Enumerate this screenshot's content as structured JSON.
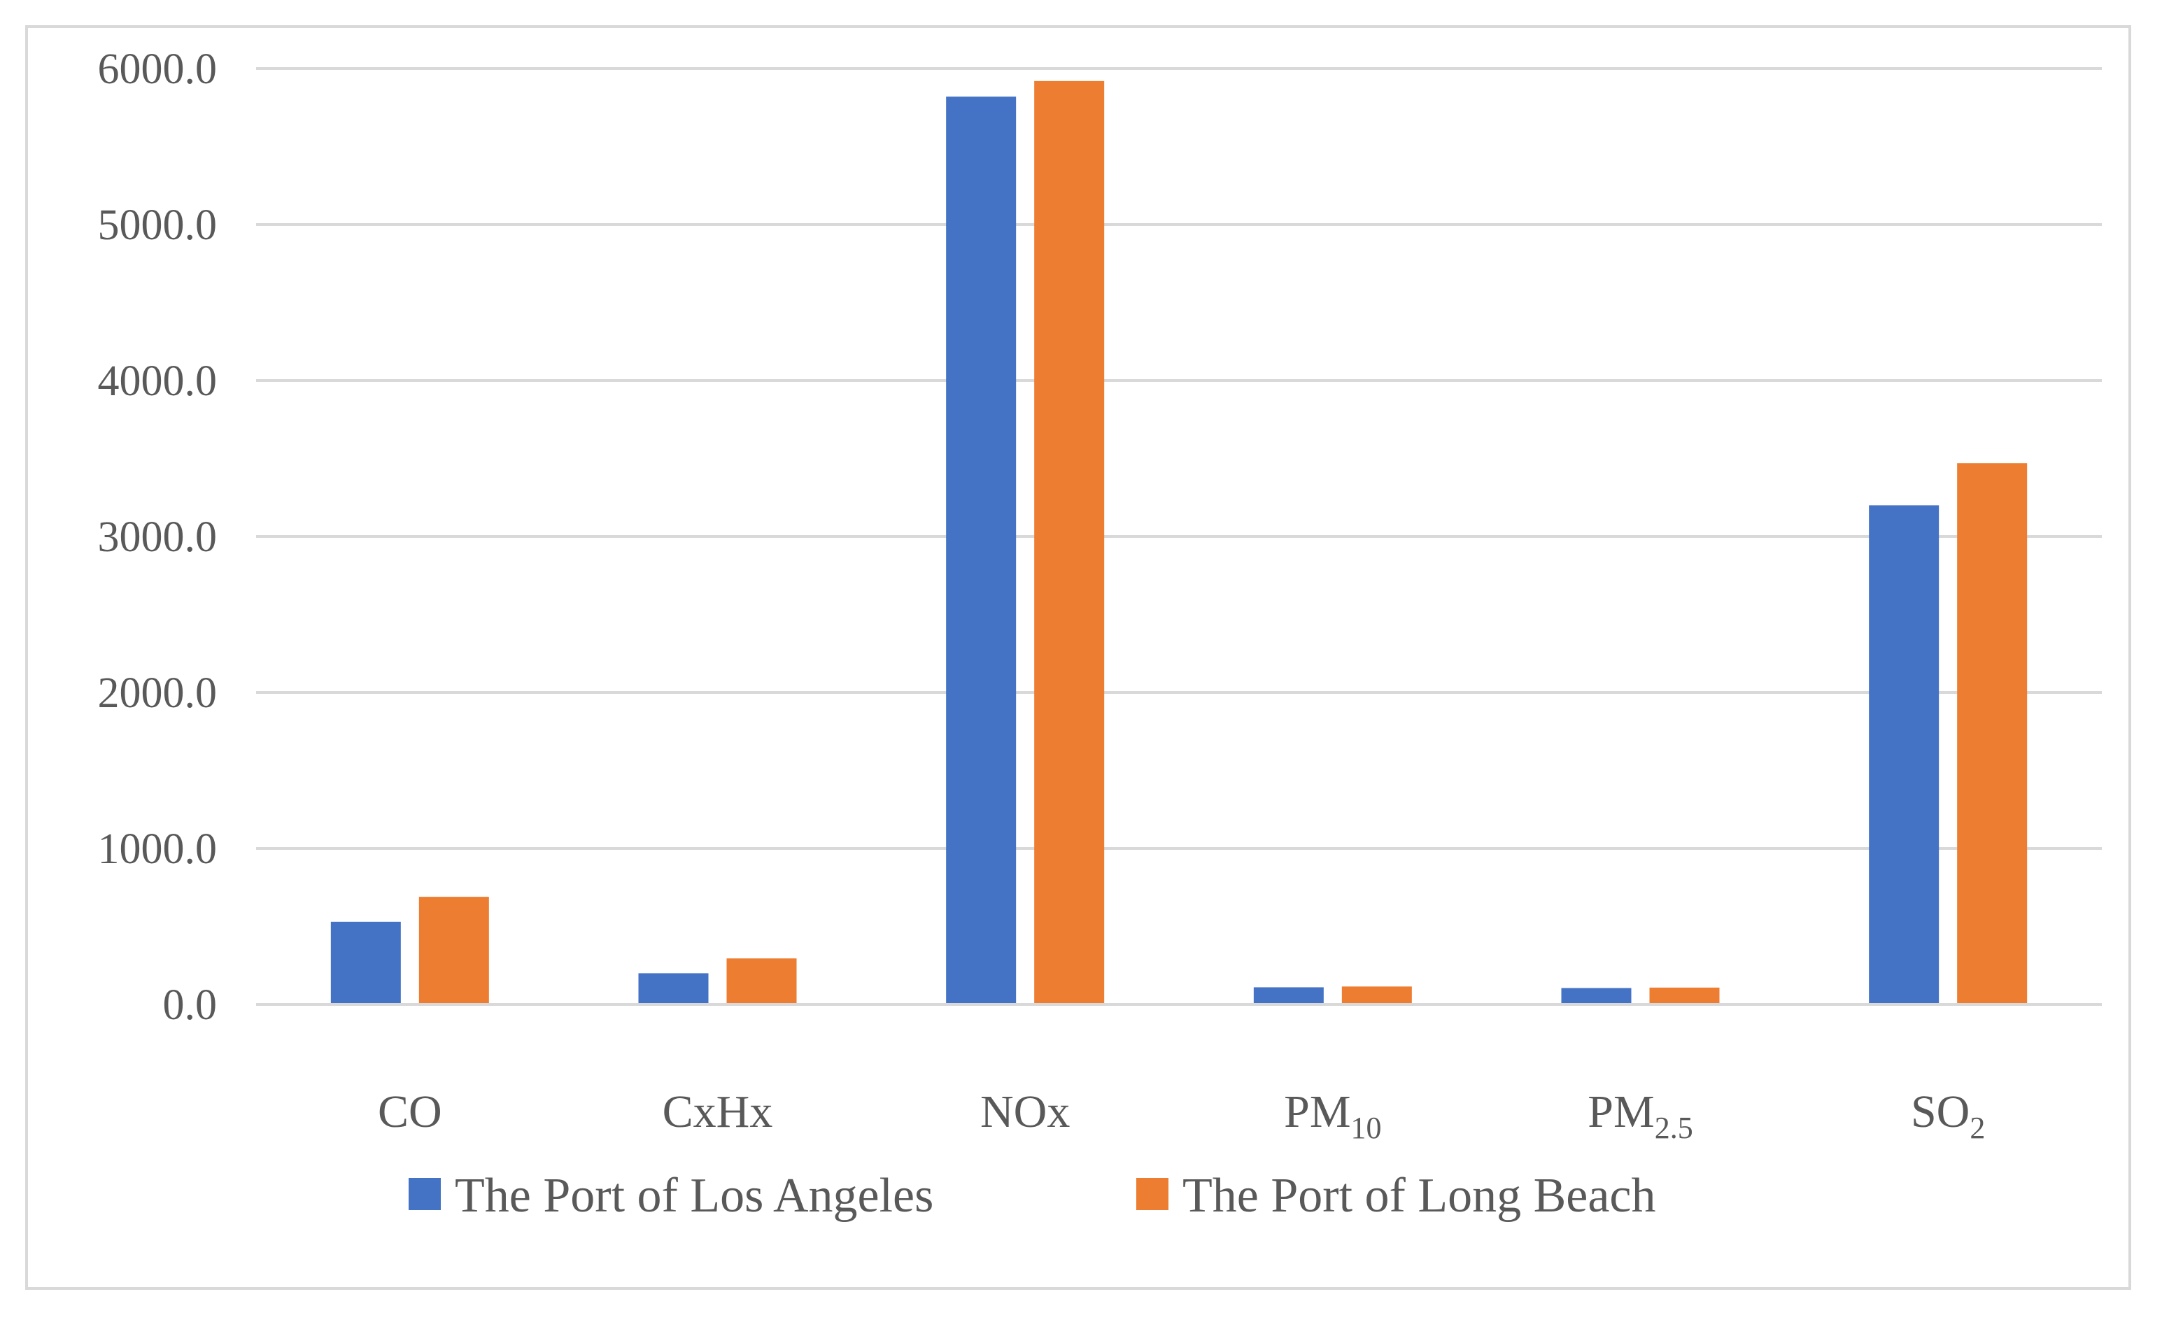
{
  "chart_data": {
    "type": "bar",
    "title": "",
    "xlabel": "",
    "ylabel": "",
    "ylim": [
      0,
      6000
    ],
    "yticks": [
      0,
      1000,
      2000,
      3000,
      4000,
      5000,
      6000
    ],
    "ytick_labels": [
      "0.0",
      "1000.0",
      "2000.0",
      "3000.0",
      "4000.0",
      "5000.0",
      "6000.0"
    ],
    "grid": true,
    "legend_position": "bottom",
    "categories": [
      {
        "base": "CO",
        "sub": ""
      },
      {
        "base": "CxHx",
        "sub": ""
      },
      {
        "base": "NOx",
        "sub": ""
      },
      {
        "base": "PM",
        "sub": "10"
      },
      {
        "base": "PM",
        "sub": "2.5"
      },
      {
        "base": "SO",
        "sub": "2"
      }
    ],
    "series": [
      {
        "name": "The Port of  Los Angeles",
        "color": "#4472c4",
        "values": [
          530,
          200,
          5820,
          110,
          105,
          3200
        ]
      },
      {
        "name": "The Port of  Long Beach",
        "color": "#ed7d31",
        "values": [
          690,
          295,
          5920,
          115,
          108,
          3470
        ]
      }
    ]
  }
}
